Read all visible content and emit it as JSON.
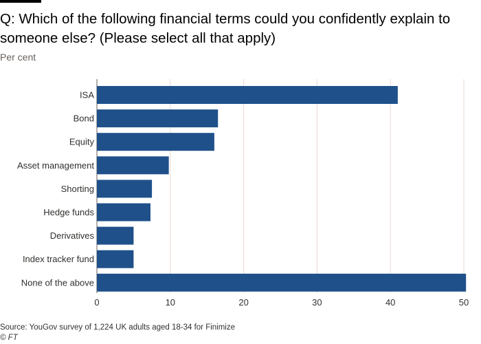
{
  "header": {
    "title": "Q: Which of the following financial terms could you confidently explain to someone else? (Please select all that apply)",
    "subtitle": "Per cent"
  },
  "footer": {
    "source": "Source: YouGov survey of 1,224 UK adults aged 18-34 for Finimize",
    "credit": "© FT"
  },
  "colors": {
    "bar": "#1f508a",
    "grid": "#e8d8d3",
    "axis": "#66605c"
  },
  "chart_data": {
    "type": "bar",
    "orientation": "horizontal",
    "title": "Q: Which of the following financial terms could you confidently explain to someone else? (Please select all that apply)",
    "subtitle": "Per cent",
    "xlabel": "",
    "ylabel": "",
    "categories": [
      "ISA",
      "Bond",
      "Equity",
      "Asset management",
      "Shorting",
      "Hedge funds",
      "Derivatives",
      "Index tracker fund",
      "None of the above"
    ],
    "values": [
      41,
      16.5,
      16,
      9.8,
      7.5,
      7.3,
      5,
      5,
      50.3
    ],
    "xlim": [
      0,
      50
    ],
    "ticks": [
      0,
      10,
      20,
      30,
      40,
      50
    ],
    "grid": "vertical"
  }
}
